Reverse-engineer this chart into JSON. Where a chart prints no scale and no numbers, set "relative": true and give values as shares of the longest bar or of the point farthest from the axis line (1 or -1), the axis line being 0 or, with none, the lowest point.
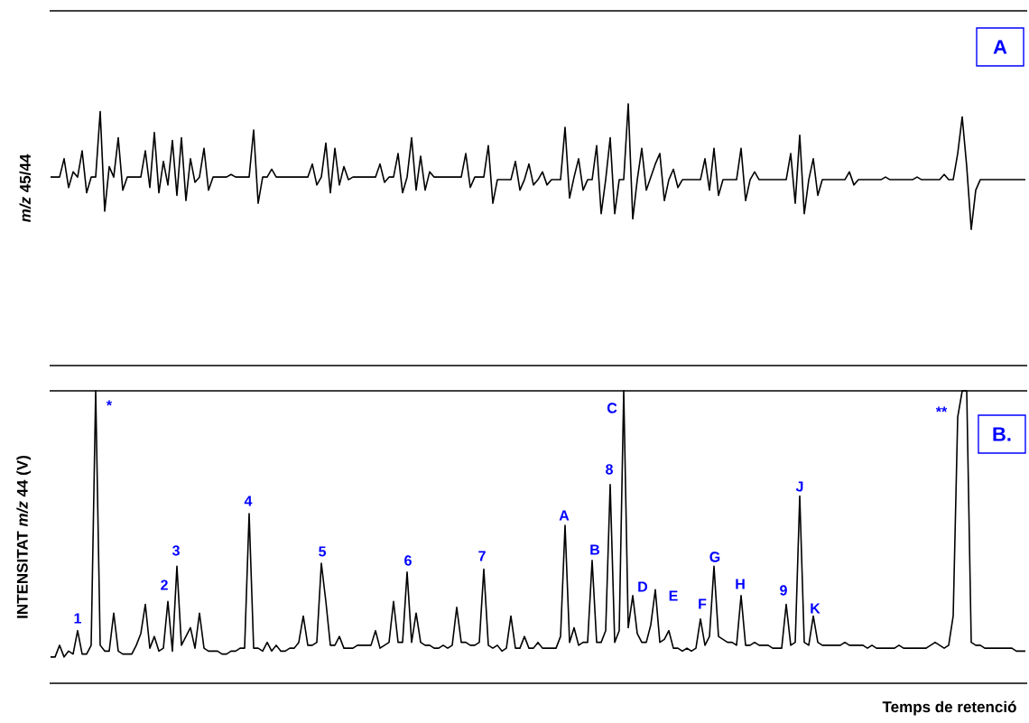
{
  "chart_data": [
    {
      "type": "line",
      "relative": true,
      "ylabel": "*m/z* 45/44",
      "annotations": [
        "A"
      ],
      "categories": [
        null,
        null,
        null,
        null,
        null,
        null,
        null,
        null,
        null,
        null,
        null,
        null,
        null,
        null,
        null,
        null,
        null,
        null,
        null,
        null,
        null,
        null,
        null,
        null,
        null,
        null,
        null,
        null,
        null,
        null,
        null,
        null,
        null,
        null,
        null,
        null,
        null,
        null,
        null,
        null,
        null,
        null,
        null,
        null,
        null,
        null,
        null,
        null,
        null,
        null,
        null,
        null,
        null,
        null,
        null,
        null,
        null,
        null,
        null,
        null,
        null,
        null,
        null,
        null,
        null,
        null,
        null,
        null,
        null,
        null,
        null,
        null,
        null,
        null,
        null,
        null,
        null,
        null,
        null,
        null,
        null,
        null,
        null,
        null,
        null,
        null,
        null,
        null,
        null,
        null,
        null,
        null,
        null,
        null,
        null,
        null,
        null,
        null,
        null,
        null,
        null,
        null,
        null,
        null,
        null,
        null,
        null,
        null,
        null,
        null,
        null,
        null,
        null,
        null,
        null,
        null,
        null,
        null,
        null,
        null,
        null,
        null,
        null,
        null,
        null,
        null,
        null,
        null,
        null,
        null,
        null,
        null,
        null,
        null,
        null,
        null,
        null,
        null,
        null,
        null,
        null,
        null,
        null,
        null,
        null,
        null,
        null,
        null,
        null,
        null,
        null,
        null,
        null,
        null,
        null,
        null,
        null,
        null,
        null,
        null,
        null,
        null,
        null,
        null,
        null,
        null,
        null,
        null,
        null,
        null,
        null,
        null,
        null,
        null,
        null,
        null,
        null,
        null,
        null,
        null,
        null,
        null,
        null,
        null,
        null,
        null,
        null,
        null,
        null,
        null,
        null,
        null,
        null,
        null,
        null,
        null,
        null,
        null,
        null,
        null,
        null,
        null,
        null,
        null,
        null,
        null,
        null,
        null,
        null,
        null,
        null,
        null,
        null,
        null,
        null,
        null,
        null
      ],
      "series": [
        {
          "color": "#000000",
          "values": [
            0.72,
            0.72,
            0.72,
            0.79,
            0.68,
            0.74,
            0.72,
            0.82,
            0.66,
            0.72,
            0.72,
            0.97,
            0.59,
            0.76,
            0.72,
            0.87,
            0.67,
            0.72,
            0.72,
            0.72,
            0.72,
            0.82,
            0.68,
            0.89,
            0.66,
            0.78,
            0.69,
            0.86,
            0.65,
            0.87,
            0.63,
            0.79,
            0.7,
            0.72,
            0.83,
            0.67,
            0.72,
            0.72,
            0.72,
            0.72,
            0.73,
            0.72,
            0.72,
            0.72,
            0.72,
            0.9,
            0.62,
            0.72,
            0.72,
            0.75,
            0.72,
            0.72,
            0.72,
            0.72,
            0.72,
            0.72,
            0.72,
            0.72,
            0.77,
            0.69,
            0.72,
            0.85,
            0.66,
            0.83,
            0.69,
            0.76,
            0.71,
            0.72,
            0.72,
            0.72,
            0.72,
            0.72,
            0.72,
            0.77,
            0.7,
            0.72,
            0.72,
            0.81,
            0.66,
            0.72,
            0.87,
            0.67,
            0.8,
            0.67,
            0.74,
            0.72,
            0.72,
            0.72,
            0.72,
            0.72,
            0.72,
            0.72,
            0.81,
            0.68,
            0.72,
            0.72,
            0.72,
            0.84,
            0.62,
            0.71,
            0.71,
            0.71,
            0.71,
            0.78,
            0.67,
            0.71,
            0.77,
            0.69,
            0.71,
            0.74,
            0.69,
            0.71,
            0.71,
            0.71,
            0.91,
            0.64,
            0.72,
            0.79,
            0.67,
            0.71,
            0.71,
            0.84,
            0.58,
            0.71,
            0.87,
            0.58,
            0.71,
            0.71,
            1,
            0.56,
            0.71,
            0.83,
            0.67,
            0.72,
            0.77,
            0.81,
            0.63,
            0.71,
            0.75,
            0.68,
            0.71,
            0.71,
            0.71,
            0.71,
            0.71,
            0.79,
            0.67,
            0.83,
            0.65,
            0.71,
            0.71,
            0.71,
            0.71,
            0.83,
            0.63,
            0.71,
            0.74,
            0.71,
            0.71,
            0.71,
            0.71,
            0.71,
            0.71,
            0.71,
            0.81,
            0.62,
            0.88,
            0.58,
            0.71,
            0.79,
            0.65,
            0.71,
            0.71,
            0.71,
            0.71,
            0.71,
            0.71,
            0.74,
            0.69,
            0.71,
            0.71,
            0.71,
            0.71,
            0.71,
            0.71,
            0.72,
            0.71,
            0.71,
            0.71,
            0.71,
            0.71,
            0.71,
            0.72,
            0.71,
            0.71,
            0.71,
            0.71,
            0.71,
            0.73,
            0.71,
            0.71,
            0.81,
            0.95,
            0.76,
            0.52,
            0.67,
            0.71,
            0.71,
            0.71,
            0.71,
            0.71,
            0.71,
            0.71,
            0.71,
            0.71,
            0.71,
            0.71
          ]
        }
      ]
    },
    {
      "type": "line",
      "relative": true,
      "ylabel": "INTENSITAT *m/z* 44 (V)",
      "xlabel": "Temps de retenció",
      "annotations": [
        "B.",
        "1",
        "*",
        "2",
        "3",
        "4",
        "5",
        "6",
        "7",
        "A",
        "B",
        "8",
        "C",
        "D",
        "E",
        "F",
        "G",
        "H",
        "9",
        "J",
        "K",
        "**"
      ],
      "categories": [
        null,
        null,
        null,
        null,
        null,
        null,
        null,
        null,
        null,
        null,
        null,
        null,
        null,
        null,
        null,
        null,
        null,
        null,
        null,
        null,
        null,
        null,
        null,
        null,
        null,
        null,
        null,
        null,
        null,
        null,
        null,
        null,
        null,
        null,
        null,
        null,
        null,
        null,
        null,
        null,
        null,
        null,
        null,
        null,
        null,
        null,
        null,
        null,
        null,
        null,
        null,
        null,
        null,
        null,
        null,
        null,
        null,
        null,
        null,
        null,
        null,
        null,
        null,
        null,
        null,
        null,
        null,
        null,
        null,
        null,
        null,
        null,
        null,
        null,
        null,
        null,
        null,
        null,
        null,
        null,
        null,
        null,
        null,
        null,
        null,
        null,
        null,
        null,
        null,
        null,
        null,
        null,
        null,
        null,
        null,
        null,
        null,
        null,
        null,
        null,
        null,
        null,
        null,
        null,
        null,
        null,
        null,
        null,
        null,
        null,
        null,
        null,
        null,
        null,
        null,
        null,
        null,
        null,
        null,
        null,
        null,
        null,
        null,
        null,
        null,
        null,
        null,
        null,
        null,
        null,
        null,
        null,
        null,
        null,
        null,
        null,
        null,
        null,
        null,
        null,
        null,
        null,
        null,
        null,
        null,
        null,
        null,
        null,
        null,
        null,
        null,
        null,
        null,
        null,
        null,
        null,
        null,
        null,
        null,
        null,
        null,
        null,
        null,
        null,
        null,
        null,
        null,
        null,
        null,
        null,
        null,
        null,
        null,
        null,
        null,
        null,
        null,
        null,
        null,
        null,
        null,
        null,
        null,
        null,
        null,
        null,
        null,
        null,
        null,
        null,
        null,
        null,
        null,
        null,
        null,
        null,
        null,
        null,
        null,
        null,
        null,
        null,
        null,
        null,
        null,
        null,
        null,
        null,
        null,
        null,
        null,
        null,
        null,
        null,
        null,
        null,
        null
      ],
      "series": [
        {
          "color": "#000000",
          "values": [
            0.09,
            0.09,
            0.13,
            0.09,
            0.11,
            0.1,
            0.18,
            0.1,
            0.1,
            0.13,
            1,
            0.13,
            0.11,
            0.11,
            0.24,
            0.11,
            0.1,
            0.1,
            0.1,
            0.13,
            0.17,
            0.27,
            0.12,
            0.16,
            0.11,
            0.12,
            0.28,
            0.11,
            0.4,
            0.13,
            0.16,
            0.19,
            0.12,
            0.24,
            0.12,
            0.11,
            0.11,
            0.11,
            0.1,
            0.1,
            0.11,
            0.11,
            0.12,
            0.12,
            0.58,
            0.12,
            0.12,
            0.11,
            0.14,
            0.11,
            0.13,
            0.11,
            0.11,
            0.12,
            0.12,
            0.14,
            0.23,
            0.13,
            0.13,
            0.14,
            0.41,
            0.28,
            0.13,
            0.13,
            0.16,
            0.12,
            0.12,
            0.12,
            0.13,
            0.13,
            0.13,
            0.13,
            0.18,
            0.12,
            0.13,
            0.14,
            0.28,
            0.14,
            0.14,
            0.38,
            0.14,
            0.24,
            0.14,
            0.13,
            0.13,
            0.12,
            0.12,
            0.13,
            0.12,
            0.13,
            0.26,
            0.14,
            0.14,
            0.13,
            0.13,
            0.14,
            0.39,
            0.13,
            0.12,
            0.13,
            0.11,
            0.12,
            0.23,
            0.12,
            0.12,
            0.16,
            0.12,
            0.12,
            0.14,
            0.12,
            0.12,
            0.12,
            0.12,
            0.16,
            0.54,
            0.14,
            0.19,
            0.13,
            0.14,
            0.14,
            0.42,
            0.14,
            0.14,
            0.18,
            0.68,
            0.14,
            0.18,
            1,
            0.19,
            0.3,
            0.17,
            0.14,
            0.14,
            0.2,
            0.32,
            0.14,
            0.15,
            0.18,
            0.12,
            0.12,
            0.11,
            0.12,
            0.11,
            0.12,
            0.22,
            0.13,
            0.16,
            0.4,
            0.16,
            0.15,
            0.14,
            0.14,
            0.13,
            0.3,
            0.13,
            0.13,
            0.14,
            0.13,
            0.13,
            0.13,
            0.12,
            0.12,
            0.12,
            0.27,
            0.13,
            0.14,
            0.64,
            0.14,
            0.13,
            0.23,
            0.14,
            0.13,
            0.13,
            0.13,
            0.13,
            0.13,
            0.14,
            0.13,
            0.13,
            0.13,
            0.13,
            0.12,
            0.13,
            0.12,
            0.12,
            0.12,
            0.12,
            0.12,
            0.13,
            0.12,
            0.12,
            0.12,
            0.12,
            0.12,
            0.12,
            0.13,
            0.14,
            0.13,
            0.12,
            0.13,
            0.23,
            0.91,
            1,
            1,
            0.14,
            0.13,
            0.13,
            0.12,
            0.12,
            0.12,
            0.12,
            0.12,
            0.12,
            0.12,
            0.11,
            0.11,
            0.11
          ]
        }
      ]
    }
  ]
}
